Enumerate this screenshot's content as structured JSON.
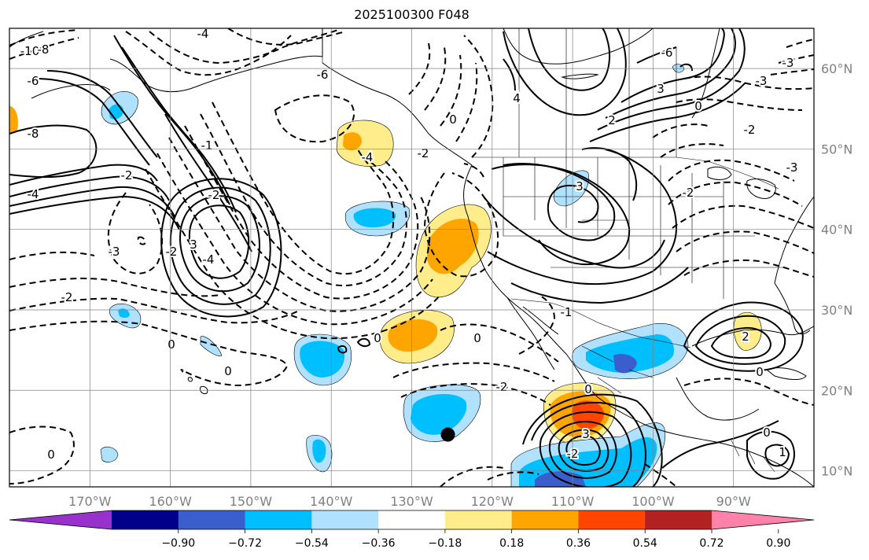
{
  "title": "2025100300 F048",
  "map": {
    "lon_range": [
      -180,
      -80
    ],
    "lat_range": [
      8,
      65
    ],
    "lon_ticks": [
      {
        "value": -170,
        "label": "170°W"
      },
      {
        "value": -160,
        "label": "160°W"
      },
      {
        "value": -150,
        "label": "150°W"
      },
      {
        "value": -140,
        "label": "140°W"
      },
      {
        "value": -130,
        "label": "130°W"
      },
      {
        "value": -120,
        "label": "120°W"
      },
      {
        "value": -110,
        "label": "110°W"
      },
      {
        "value": -100,
        "label": "100°W"
      },
      {
        "value": -90,
        "label": "90°W"
      }
    ],
    "lat_ticks": [
      {
        "value": 10,
        "label": "10°N"
      },
      {
        "value": 20,
        "label": "20°N"
      },
      {
        "value": 30,
        "label": "30°N"
      },
      {
        "value": 40,
        "label": "40°N"
      },
      {
        "value": 50,
        "label": "50°N"
      },
      {
        "value": 60,
        "label": "60°N"
      }
    ],
    "gridlines": true,
    "storm_marker": {
      "lon": -125.5,
      "lat": 14.5
    },
    "contour_labels": [
      "-10",
      "-8",
      "-6",
      "-4",
      "-3",
      "-2",
      "-1",
      "0",
      "1",
      "2",
      "3",
      "4",
      "6"
    ]
  },
  "colorbar": {
    "levels": [
      -0.9,
      -0.72,
      -0.54,
      -0.36,
      -0.18,
      0.18,
      0.36,
      0.54,
      0.72,
      0.9
    ],
    "tick_labels": [
      "−0.90",
      "−0.72",
      "−0.54",
      "−0.36",
      "−0.18",
      "0.18",
      "0.36",
      "0.54",
      "0.72",
      "0.90"
    ],
    "colors": [
      "#9932cc",
      "#00008b",
      "#3a5fcd",
      "#00bfff",
      "#b0e2ff",
      "#ffffff",
      "#ffec8b",
      "#ffa500",
      "#ff4500",
      "#b22222",
      "#ff82ab"
    ],
    "extend": "both"
  }
}
